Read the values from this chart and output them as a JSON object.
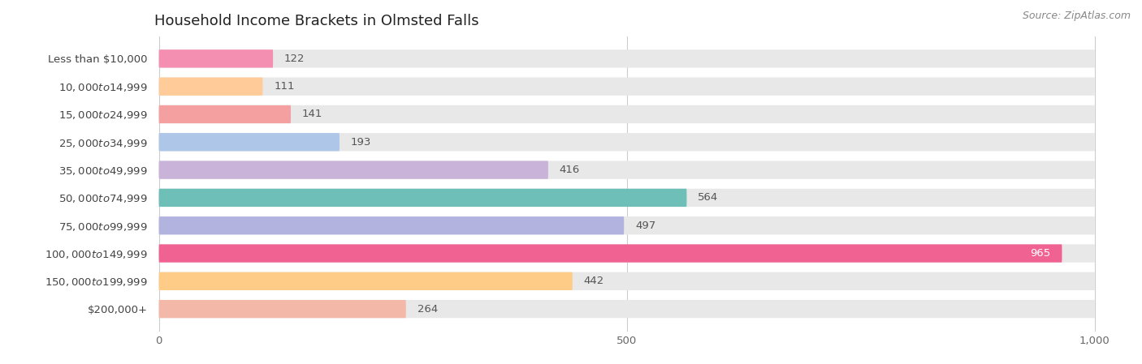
{
  "title": "Household Income Brackets in Olmsted Falls",
  "source": "Source: ZipAtlas.com",
  "categories": [
    "Less than $10,000",
    "$10,000 to $14,999",
    "$15,000 to $24,999",
    "$25,000 to $34,999",
    "$35,000 to $49,999",
    "$50,000 to $74,999",
    "$75,000 to $99,999",
    "$100,000 to $149,999",
    "$150,000 to $199,999",
    "$200,000+"
  ],
  "values": [
    122,
    111,
    141,
    193,
    416,
    564,
    497,
    965,
    442,
    264
  ],
  "colors": [
    "#f48fb1",
    "#ffcc99",
    "#f4a0a0",
    "#aec6e8",
    "#c9b3d9",
    "#6dbfb8",
    "#b3b3e0",
    "#f06292",
    "#ffcc88",
    "#f4b8a8"
  ],
  "bar_bg_color": "#e8e8e8",
  "xlim_max": 1000,
  "xticks": [
    0,
    500,
    1000
  ],
  "xtick_labels": [
    "0",
    "500",
    "1,000"
  ],
  "title_fontsize": 13,
  "label_fontsize": 9.5,
  "value_fontsize": 9.5,
  "source_fontsize": 9,
  "bar_height": 0.65,
  "value_white_threshold": 900
}
